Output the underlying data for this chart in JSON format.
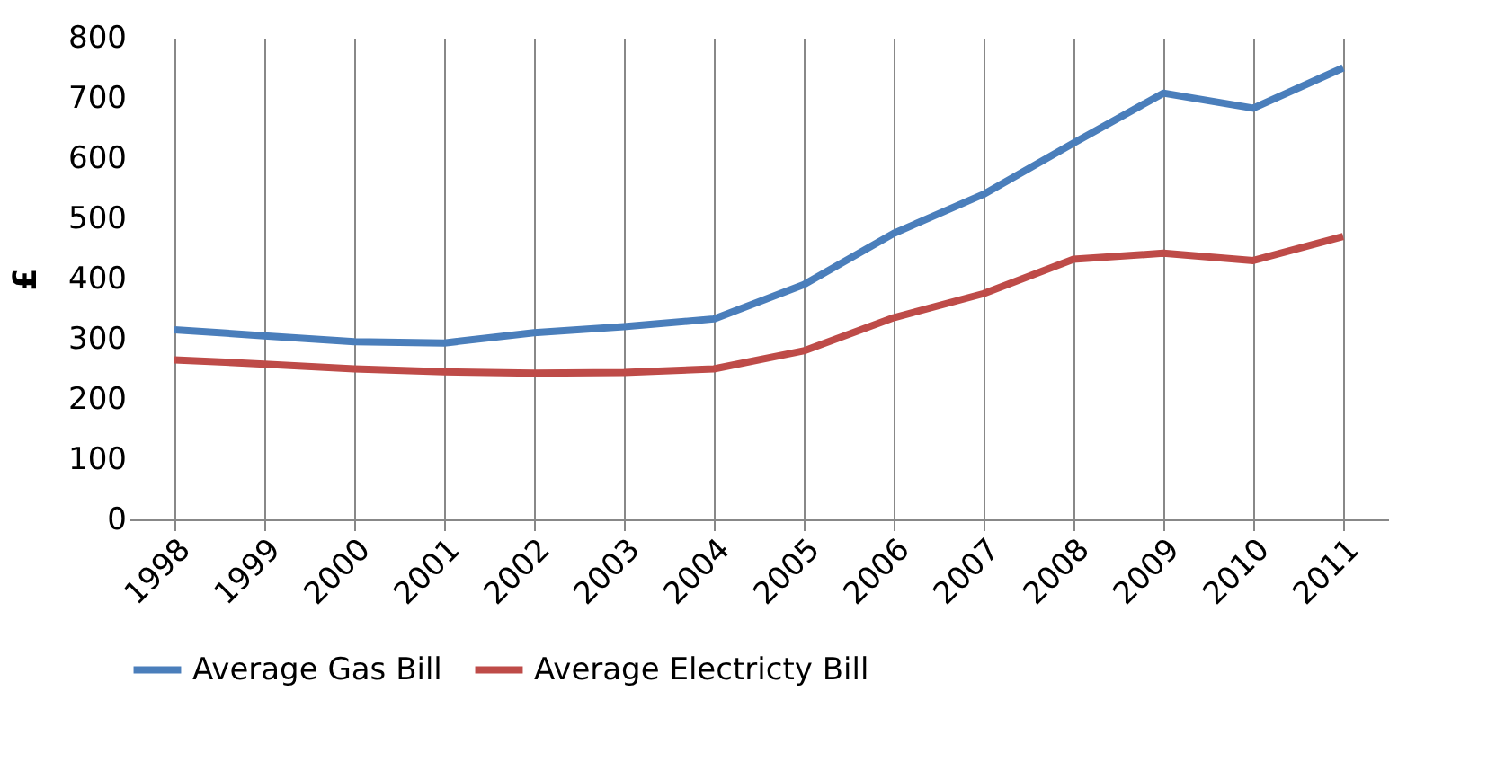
{
  "chart_data": {
    "type": "line",
    "ylabel": "£",
    "categories": [
      "1998",
      "1999",
      "2000",
      "2001",
      "2002",
      "2003",
      "2004",
      "2005",
      "2006",
      "2007",
      "2008",
      "2009",
      "2010",
      "2011"
    ],
    "series": [
      {
        "name": "Average Gas Bill",
        "color": "#4a7ebb",
        "values": [
          315,
          305,
          295,
          293,
          310,
          320,
          333,
          390,
          475,
          540,
          625,
          708,
          683,
          750
        ]
      },
      {
        "name": "Average Electricty Bill",
        "color": "#be4b48",
        "values": [
          265,
          258,
          250,
          245,
          243,
          244,
          250,
          280,
          335,
          375,
          432,
          442,
          430,
          470
        ]
      }
    ],
    "ylim": [
      0,
      800
    ],
    "yticks": [
      0,
      100,
      200,
      300,
      400,
      500,
      600,
      700,
      800
    ],
    "grid": "x",
    "legend": "bottom",
    "marker": "none",
    "line_style": "solid"
  }
}
